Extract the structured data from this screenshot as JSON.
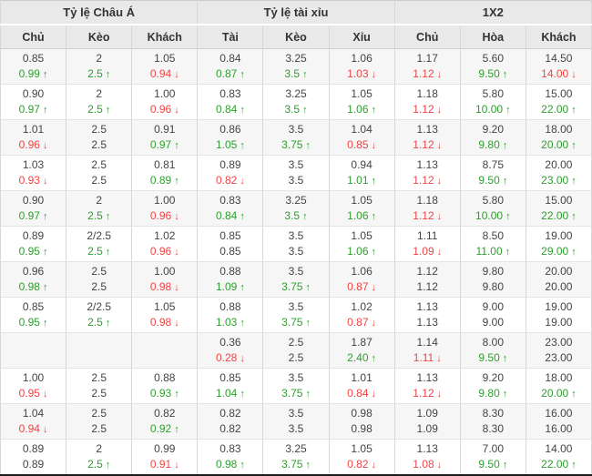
{
  "table": {
    "groups": [
      {
        "label": "Tỷ lệ Châu Á"
      },
      {
        "label": "Tỷ lệ tài xỉu"
      },
      {
        "label": "1X2"
      }
    ],
    "columns": [
      "Chủ",
      "Kèo",
      "Khách",
      "Tài",
      "Kèo",
      "Xỉu",
      "Chủ",
      "Hòa",
      "Khách"
    ],
    "colors": {
      "up": "#2f9e2f",
      "down": "#ef4444",
      "text": "#444444",
      "header_bg": "#e9e9e9",
      "row_alt_bg": "#f6f6f6",
      "bottom_border": "#1c1c1c"
    },
    "icons": {
      "up": "↑",
      "down": "↓"
    },
    "rows": [
      {
        "cells": [
          {
            "v1": "0.85",
            "v2": "0.99",
            "dir": "up"
          },
          {
            "v1": "2",
            "v2": "2.5",
            "dir": "up"
          },
          {
            "v1": "1.05",
            "v2": "0.94",
            "dir": "down"
          },
          {
            "v1": "0.84",
            "v2": "0.87",
            "dir": "up"
          },
          {
            "v1": "3.25",
            "v2": "3.5",
            "dir": "up"
          },
          {
            "v1": "1.06",
            "v2": "1.03",
            "dir": "down"
          },
          {
            "v1": "1.17",
            "v2": "1.12",
            "dir": "down"
          },
          {
            "v1": "5.60",
            "v2": "9.50",
            "dir": "up"
          },
          {
            "v1": "14.50",
            "v2": "14.00",
            "dir": "down"
          }
        ]
      },
      {
        "cells": [
          {
            "v1": "0.90",
            "v2": "0.97",
            "dir": "up"
          },
          {
            "v1": "2",
            "v2": "2.5",
            "dir": "up"
          },
          {
            "v1": "1.00",
            "v2": "0.96",
            "dir": "down"
          },
          {
            "v1": "0.83",
            "v2": "0.84",
            "dir": "up"
          },
          {
            "v1": "3.25",
            "v2": "3.5",
            "dir": "up"
          },
          {
            "v1": "1.05",
            "v2": "1.06",
            "dir": "up"
          },
          {
            "v1": "1.18",
            "v2": "1.12",
            "dir": "down"
          },
          {
            "v1": "5.80",
            "v2": "10.00",
            "dir": "up"
          },
          {
            "v1": "15.00",
            "v2": "22.00",
            "dir": "up"
          }
        ]
      },
      {
        "cells": [
          {
            "v1": "1.01",
            "v2": "0.96",
            "dir": "down"
          },
          {
            "v1": "2.5",
            "v2": "2.5",
            "dir": "none"
          },
          {
            "v1": "0.91",
            "v2": "0.97",
            "dir": "up"
          },
          {
            "v1": "0.86",
            "v2": "1.05",
            "dir": "up"
          },
          {
            "v1": "3.5",
            "v2": "3.75",
            "dir": "up"
          },
          {
            "v1": "1.04",
            "v2": "0.85",
            "dir": "down"
          },
          {
            "v1": "1.13",
            "v2": "1.12",
            "dir": "down"
          },
          {
            "v1": "9.20",
            "v2": "9.80",
            "dir": "up"
          },
          {
            "v1": "18.00",
            "v2": "20.00",
            "dir": "up"
          }
        ]
      },
      {
        "cells": [
          {
            "v1": "1.03",
            "v2": "0.93",
            "dir": "down"
          },
          {
            "v1": "2.5",
            "v2": "2.5",
            "dir": "none"
          },
          {
            "v1": "0.81",
            "v2": "0.89",
            "dir": "up"
          },
          {
            "v1": "0.89",
            "v2": "0.82",
            "dir": "down"
          },
          {
            "v1": "3.5",
            "v2": "3.5",
            "dir": "none"
          },
          {
            "v1": "0.94",
            "v2": "1.01",
            "dir": "up"
          },
          {
            "v1": "1.13",
            "v2": "1.12",
            "dir": "down"
          },
          {
            "v1": "8.75",
            "v2": "9.50",
            "dir": "up"
          },
          {
            "v1": "20.00",
            "v2": "23.00",
            "dir": "up"
          }
        ]
      },
      {
        "cells": [
          {
            "v1": "0.90",
            "v2": "0.97",
            "dir": "up"
          },
          {
            "v1": "2",
            "v2": "2.5",
            "dir": "up"
          },
          {
            "v1": "1.00",
            "v2": "0.96",
            "dir": "down"
          },
          {
            "v1": "0.83",
            "v2": "0.84",
            "dir": "up"
          },
          {
            "v1": "3.25",
            "v2": "3.5",
            "dir": "up"
          },
          {
            "v1": "1.05",
            "v2": "1.06",
            "dir": "up"
          },
          {
            "v1": "1.18",
            "v2": "1.12",
            "dir": "down"
          },
          {
            "v1": "5.80",
            "v2": "10.00",
            "dir": "up"
          },
          {
            "v1": "15.00",
            "v2": "22.00",
            "dir": "up"
          }
        ]
      },
      {
        "cells": [
          {
            "v1": "0.89",
            "v2": "0.95",
            "dir": "up"
          },
          {
            "v1": "2/2.5",
            "v2": "2.5",
            "dir": "up"
          },
          {
            "v1": "1.02",
            "v2": "0.96",
            "dir": "down"
          },
          {
            "v1": "0.85",
            "v2": "0.85",
            "dir": "none"
          },
          {
            "v1": "3.5",
            "v2": "3.5",
            "dir": "none"
          },
          {
            "v1": "1.05",
            "v2": "1.06",
            "dir": "up"
          },
          {
            "v1": "1.11",
            "v2": "1.09",
            "dir": "down"
          },
          {
            "v1": "8.50",
            "v2": "11.00",
            "dir": "up"
          },
          {
            "v1": "19.00",
            "v2": "29.00",
            "dir": "up"
          }
        ]
      },
      {
        "cells": [
          {
            "v1": "0.96",
            "v2": "0.98",
            "dir": "up"
          },
          {
            "v1": "2.5",
            "v2": "2.5",
            "dir": "none"
          },
          {
            "v1": "1.00",
            "v2": "0.98",
            "dir": "down"
          },
          {
            "v1": "0.88",
            "v2": "1.09",
            "dir": "up"
          },
          {
            "v1": "3.5",
            "v2": "3.75",
            "dir": "up"
          },
          {
            "v1": "1.06",
            "v2": "0.87",
            "dir": "down"
          },
          {
            "v1": "1.12",
            "v2": "1.12",
            "dir": "none"
          },
          {
            "v1": "9.80",
            "v2": "9.80",
            "dir": "none"
          },
          {
            "v1": "20.00",
            "v2": "20.00",
            "dir": "none"
          }
        ]
      },
      {
        "cells": [
          {
            "v1": "0.85",
            "v2": "0.95",
            "dir": "up"
          },
          {
            "v1": "2/2.5",
            "v2": "2.5",
            "dir": "up"
          },
          {
            "v1": "1.05",
            "v2": "0.98",
            "dir": "down"
          },
          {
            "v1": "0.88",
            "v2": "1.03",
            "dir": "up"
          },
          {
            "v1": "3.5",
            "v2": "3.75",
            "dir": "up"
          },
          {
            "v1": "1.02",
            "v2": "0.87",
            "dir": "down"
          },
          {
            "v1": "1.13",
            "v2": "1.13",
            "dir": "none"
          },
          {
            "v1": "9.00",
            "v2": "9.00",
            "dir": "none"
          },
          {
            "v1": "19.00",
            "v2": "19.00",
            "dir": "none"
          }
        ]
      },
      {
        "cells": [
          {
            "v1": "",
            "v2": "",
            "dir": "none"
          },
          {
            "v1": "",
            "v2": "",
            "dir": "none"
          },
          {
            "v1": "",
            "v2": "",
            "dir": "none"
          },
          {
            "v1": "0.36",
            "v2": "0.28",
            "dir": "down"
          },
          {
            "v1": "2.5",
            "v2": "2.5",
            "dir": "none"
          },
          {
            "v1": "1.87",
            "v2": "2.40",
            "dir": "up"
          },
          {
            "v1": "1.14",
            "v2": "1.11",
            "dir": "down"
          },
          {
            "v1": "8.00",
            "v2": "9.50",
            "dir": "up"
          },
          {
            "v1": "23.00",
            "v2": "23.00",
            "dir": "none"
          }
        ]
      },
      {
        "cells": [
          {
            "v1": "1.00",
            "v2": "0.95",
            "dir": "down"
          },
          {
            "v1": "2.5",
            "v2": "2.5",
            "dir": "none"
          },
          {
            "v1": "0.88",
            "v2": "0.93",
            "dir": "up"
          },
          {
            "v1": "0.85",
            "v2": "1.04",
            "dir": "up"
          },
          {
            "v1": "3.5",
            "v2": "3.75",
            "dir": "up"
          },
          {
            "v1": "1.01",
            "v2": "0.84",
            "dir": "down"
          },
          {
            "v1": "1.13",
            "v2": "1.12",
            "dir": "down"
          },
          {
            "v1": "9.20",
            "v2": "9.80",
            "dir": "up"
          },
          {
            "v1": "18.00",
            "v2": "20.00",
            "dir": "up"
          }
        ]
      },
      {
        "cells": [
          {
            "v1": "1.04",
            "v2": "0.94",
            "dir": "down"
          },
          {
            "v1": "2.5",
            "v2": "2.5",
            "dir": "none"
          },
          {
            "v1": "0.82",
            "v2": "0.92",
            "dir": "up"
          },
          {
            "v1": "0.82",
            "v2": "0.82",
            "dir": "none"
          },
          {
            "v1": "3.5",
            "v2": "3.5",
            "dir": "none"
          },
          {
            "v1": "0.98",
            "v2": "0.98",
            "dir": "none"
          },
          {
            "v1": "1.09",
            "v2": "1.09",
            "dir": "none"
          },
          {
            "v1": "8.30",
            "v2": "8.30",
            "dir": "none"
          },
          {
            "v1": "16.00",
            "v2": "16.00",
            "dir": "none"
          }
        ]
      },
      {
        "cells": [
          {
            "v1": "0.89",
            "v2": "0.89",
            "dir": "none"
          },
          {
            "v1": "2",
            "v2": "2.5",
            "dir": "up"
          },
          {
            "v1": "0.99",
            "v2": "0.91",
            "dir": "down"
          },
          {
            "v1": "0.83",
            "v2": "0.98",
            "dir": "up"
          },
          {
            "v1": "3.25",
            "v2": "3.75",
            "dir": "up"
          },
          {
            "v1": "1.05",
            "v2": "0.82",
            "dir": "down"
          },
          {
            "v1": "1.13",
            "v2": "1.08",
            "dir": "down"
          },
          {
            "v1": "7.00",
            "v2": "9.50",
            "dir": "up"
          },
          {
            "v1": "14.00",
            "v2": "22.00",
            "dir": "up"
          }
        ]
      }
    ]
  }
}
